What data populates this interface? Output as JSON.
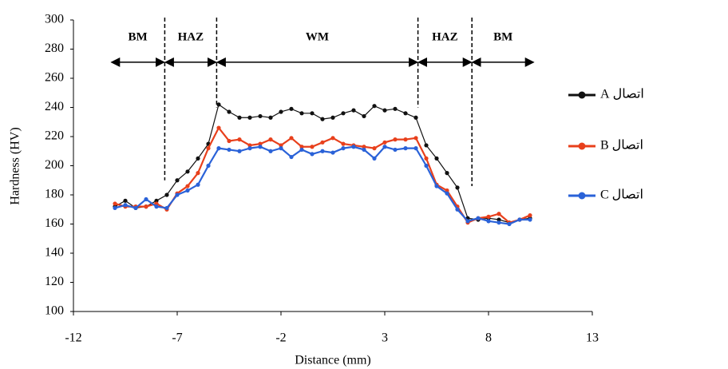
{
  "chart_data": {
    "type": "line",
    "x_label": "Distance (mm)",
    "y_label": "Hardness (HV)",
    "xlim": [
      -12,
      13
    ],
    "xticks": [
      -12,
      -7,
      -2,
      3,
      8,
      13
    ],
    "ylim": [
      100,
      300
    ],
    "yticks": [
      100,
      120,
      140,
      160,
      180,
      200,
      220,
      240,
      260,
      280,
      300
    ],
    "grid": false,
    "legend": "right",
    "x": [
      -10,
      -9.5,
      -9,
      -8.5,
      -8,
      -7.5,
      -7,
      -6.5,
      -6,
      -5.5,
      -5,
      -4.5,
      -4,
      -3.5,
      -3,
      -2.5,
      -2,
      -1.5,
      -1,
      -0.5,
      0,
      0.5,
      1,
      1.5,
      2,
      2.5,
      3,
      3.5,
      4,
      4.5,
      5,
      5.5,
      6,
      6.5,
      7,
      7.5,
      8,
      8.5,
      9,
      9.5,
      10
    ],
    "series": [
      {
        "name": "اتصال A",
        "color": "#111111",
        "values": [
          172,
          176,
          171,
          172,
          176,
          180,
          190,
          196,
          205,
          215,
          242,
          237,
          233,
          233,
          234,
          233,
          237,
          239,
          236,
          236,
          232,
          233,
          236,
          238,
          234,
          241,
          238,
          239,
          236,
          233,
          214,
          205,
          195,
          185,
          164,
          163,
          164,
          163,
          161,
          163,
          164
        ]
      },
      {
        "name": "اتصال B",
        "color": "#e8401c",
        "values": [
          174,
          172,
          172,
          172,
          174,
          170,
          181,
          186,
          195,
          212,
          226,
          217,
          218,
          214,
          215,
          218,
          214,
          219,
          213,
          213,
          216,
          219,
          215,
          214,
          213,
          212,
          216,
          218,
          218,
          219,
          205,
          187,
          183,
          172,
          161,
          164,
          165,
          167,
          161,
          163,
          166
        ]
      },
      {
        "name": "اتصال C",
        "color": "#2a62d8",
        "values": [
          171,
          173,
          171,
          177,
          172,
          171,
          180,
          183,
          187,
          200,
          212,
          211,
          210,
          212,
          213,
          210,
          212,
          206,
          211,
          208,
          210,
          209,
          212,
          213,
          211,
          205,
          213,
          211,
          212,
          212,
          200,
          186,
          181,
          170,
          162,
          164,
          162,
          161,
          160,
          163,
          163
        ]
      }
    ],
    "boundaries": [
      {
        "x": -7.6,
        "y_end": 190
      },
      {
        "x": -5.1,
        "y_end": 240
      },
      {
        "x": 4.6,
        "y_end": 240
      },
      {
        "x": 7.2,
        "y_end": 186
      }
    ],
    "arrow_y": 271,
    "regions": [
      {
        "label": "BM",
        "start": -10.2,
        "end": -7.6
      },
      {
        "label": "HAZ",
        "start": -7.6,
        "end": -5.1
      },
      {
        "label": "WM",
        "start": -5.1,
        "end": 4.6
      },
      {
        "label": "HAZ",
        "start": 4.6,
        "end": 7.2
      },
      {
        "label": "BM",
        "start": 7.2,
        "end": 10.2
      }
    ]
  }
}
